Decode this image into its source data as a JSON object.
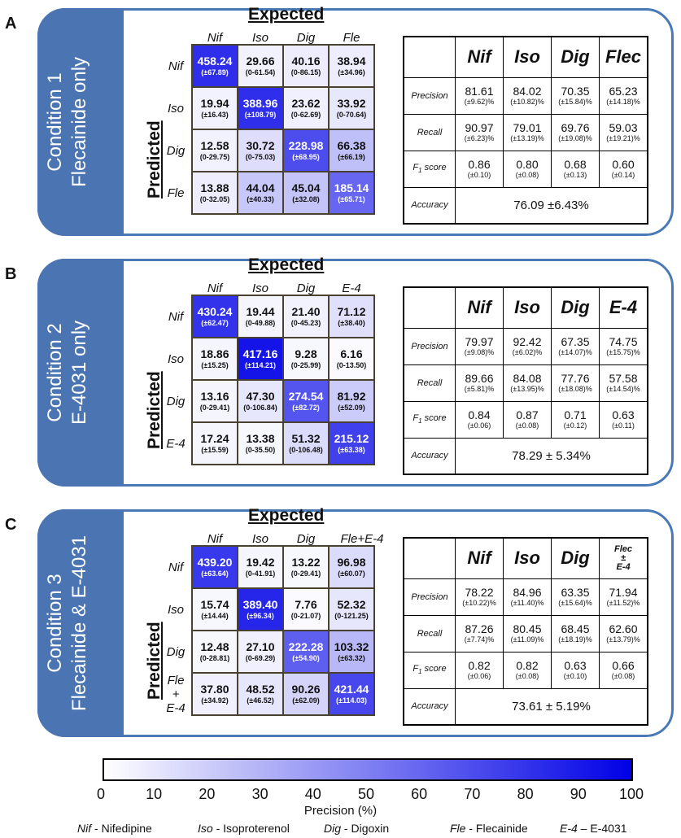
{
  "panels": [
    {
      "letter": "A",
      "condition_line1": "Condition 1",
      "condition_line2": "Flecainide only",
      "expected_label": "Expected",
      "predicted_label": "Predicted",
      "classes": [
        "Nif",
        "Iso",
        "Dig",
        "Fle"
      ],
      "matrix": [
        [
          {
            "v": "458.24",
            "s": "(±67.89)"
          },
          {
            "v": "29.66",
            "s": "(0-61.54)"
          },
          {
            "v": "40.16",
            "s": "(0-86.15)"
          },
          {
            "v": "38.94",
            "s": "(±34.96)"
          }
        ],
        [
          {
            "v": "19.94",
            "s": "(±16.43)"
          },
          {
            "v": "388.96",
            "s": "(±108.79)"
          },
          {
            "v": "23.62",
            "s": "(0-62.69)"
          },
          {
            "v": "33.92",
            "s": "(0-70.64)"
          }
        ],
        [
          {
            "v": "12.58",
            "s": "(0-29.75)"
          },
          {
            "v": "30.72",
            "s": "(0-75.03)"
          },
          {
            "v": "228.98",
            "s": "(±68.95)"
          },
          {
            "v": "66.38",
            "s": "(±66.19)"
          }
        ],
        [
          {
            "v": "13.88",
            "s": "(0-32.05)"
          },
          {
            "v": "44.04",
            "s": "(±40.33)"
          },
          {
            "v": "45.04",
            "s": "(±32.08)"
          },
          {
            "v": "185.14",
            "s": "(±65.71)"
          }
        ]
      ],
      "precision_shade": [
        [
          82,
          5,
          7,
          7
        ],
        [
          5,
          82,
          6,
          9
        ],
        [
          5,
          13,
          70,
          25
        ],
        [
          7,
          22,
          23,
          60
        ]
      ],
      "stats_headers": [
        "Nif",
        "Iso",
        "Dig",
        "Flec"
      ],
      "stats_header_small": [
        false,
        false,
        false,
        false
      ],
      "precision_label": "Precision",
      "precision": [
        [
          "81.61",
          "(±9.62)%"
        ],
        [
          "84.02",
          "(±10.82)%"
        ],
        [
          "70.35",
          "(±15.84)%"
        ],
        [
          "65.23",
          "(±14.18)%"
        ]
      ],
      "recall_label": "Recall",
      "recall": [
        [
          "90.97",
          "(±6.23)%"
        ],
        [
          "79.01",
          "(±13.19)%"
        ],
        [
          "69.76",
          "(±19.08)%"
        ],
        [
          "59.03",
          "(±19.21)%"
        ]
      ],
      "f1_label": "F",
      "f1_sub": "1",
      "f1_suffix": " score",
      "f1": [
        [
          "0.86",
          "(±0.10)"
        ],
        [
          "0.80",
          "(±0.08)"
        ],
        [
          "0.68",
          "(±0.13)"
        ],
        [
          "0.60",
          "(±0.14)"
        ]
      ],
      "accuracy_label": "Accuracy",
      "accuracy": "76.09 ±6.43%"
    },
    {
      "letter": "B",
      "condition_line1": "Condition 2",
      "condition_line2": "E-4031 only",
      "expected_label": "Expected",
      "predicted_label": "Predicted",
      "classes": [
        "Nif",
        "Iso",
        "Dig",
        "E-4"
      ],
      "matrix": [
        [
          {
            "v": "430.24",
            "s": "(±62.47)"
          },
          {
            "v": "19.44",
            "s": "(0-49.88)"
          },
          {
            "v": "21.40",
            "s": "(0-45.23)"
          },
          {
            "v": "71.12",
            "s": "(±38.40)"
          }
        ],
        [
          {
            "v": "18.86",
            "s": "(±15.25)"
          },
          {
            "v": "417.16",
            "s": "(±114.21)"
          },
          {
            "v": "9.28",
            "s": "(0-25.99)"
          },
          {
            "v": "6.16",
            "s": "(0-13.50)"
          }
        ],
        [
          {
            "v": "13.16",
            "s": "(0-29.41)"
          },
          {
            "v": "47.30",
            "s": "(0-106.84)"
          },
          {
            "v": "274.54",
            "s": "(±82.72)"
          },
          {
            "v": "81.92",
            "s": "(±52.09)"
          }
        ],
        [
          {
            "v": "17.24",
            "s": "(±15.59)"
          },
          {
            "v": "13.38",
            "s": "(0-35.50)"
          },
          {
            "v": "51.32",
            "s": "(0-106.48)"
          },
          {
            "v": "215.12",
            "s": "(±63.38)"
          }
        ]
      ],
      "precision_shade": [
        [
          80,
          4,
          5,
          12
        ],
        [
          4,
          92,
          3,
          2
        ],
        [
          4,
          10,
          67,
          20
        ],
        [
          4,
          3,
          14,
          75
        ]
      ],
      "stats_headers": [
        "Nif",
        "Iso",
        "Dig",
        "E-4"
      ],
      "stats_header_small": [
        false,
        false,
        false,
        false
      ],
      "precision_label": "Precision",
      "precision": [
        [
          "79.97",
          "(±9.08)%"
        ],
        [
          "92.42",
          "(±6.02)%"
        ],
        [
          "67.35",
          "(±14.07)%"
        ],
        [
          "74.75",
          "(±15.75)%"
        ]
      ],
      "recall_label": "Recall",
      "recall": [
        [
          "89.66",
          "(±5.81)%"
        ],
        [
          "84.08",
          "(±13.95)%"
        ],
        [
          "77.76",
          "(±18.08)%"
        ],
        [
          "57.58",
          "(±14.54)%"
        ]
      ],
      "f1_label": "F",
      "f1_sub": "1",
      "f1_suffix": " score",
      "f1": [
        [
          "0.84",
          "(±0.06)"
        ],
        [
          "0.87",
          "(±0.08)"
        ],
        [
          "0.71",
          "(±0.12)"
        ],
        [
          "0.63",
          "(±0.11)"
        ]
      ],
      "accuracy_label": "Accuracy",
      "accuracy": "78.29 ± 5.34%"
    },
    {
      "letter": "C",
      "condition_line1": "Condition 3",
      "condition_line2": "Flecainide & E-4031",
      "expected_label": "Expected",
      "predicted_label": "Predicted",
      "classes": [
        "Nif",
        "Iso",
        "Dig",
        "Fle+E-4"
      ],
      "row_classes": [
        "Nif",
        "Iso",
        "Dig",
        "Fle\n+\nE-4"
      ],
      "matrix": [
        [
          {
            "v": "439.20",
            "s": "(±63.64)"
          },
          {
            "v": "19.42",
            "s": "(0-41.91)"
          },
          {
            "v": "13.22",
            "s": "(0-29.41)"
          },
          {
            "v": "96.98",
            "s": "(±60.07)"
          }
        ],
        [
          {
            "v": "15.74",
            "s": "(±14.44)"
          },
          {
            "v": "389.40",
            "s": "(±96.34)"
          },
          {
            "v": "7.76",
            "s": "(0-21.07)"
          },
          {
            "v": "52.32",
            "s": "(0-121.25)"
          }
        ],
        [
          {
            "v": "12.48",
            "s": "(0-28.81)"
          },
          {
            "v": "27.10",
            "s": "(0-69.29)"
          },
          {
            "v": "222.28",
            "s": "(±54.90)"
          },
          {
            "v": "103.32",
            "s": "(±63.32)"
          }
        ],
        [
          {
            "v": "37.80",
            "s": "(±34.92)"
          },
          {
            "v": "48.52",
            "s": "(±46.52)"
          },
          {
            "v": "90.26",
            "s": "(±62.09)"
          },
          {
            "v": "421.44",
            "s": "(±114.03)"
          }
        ]
      ],
      "precision_shade": [
        [
          78,
          4,
          3,
          14
        ],
        [
          3,
          85,
          2,
          10
        ],
        [
          3,
          6,
          63,
          28
        ],
        [
          6,
          10,
          17,
          72
        ]
      ],
      "stats_headers": [
        "Nif",
        "Iso",
        "Dig",
        "Flec\n±\nE-4"
      ],
      "stats_header_small": [
        false,
        false,
        false,
        true
      ],
      "precision_label": "Precision",
      "precision": [
        [
          "78.22",
          "(±10.22)%"
        ],
        [
          "84.96",
          "(±11.40)%"
        ],
        [
          "63.35",
          "(±15.64)%"
        ],
        [
          "71.94",
          "(±11.52)%"
        ]
      ],
      "recall_label": "Recall",
      "recall": [
        [
          "87.26",
          "(±7.74)%"
        ],
        [
          "80.45",
          "(±11.09)%"
        ],
        [
          "68.45",
          "(±18.19)%"
        ],
        [
          "62.60",
          "(±13.79)%"
        ]
      ],
      "f1_label": "F",
      "f1_sub": "1",
      "f1_suffix": " score",
      "f1": [
        [
          "0.82",
          "(±0.06)"
        ],
        [
          "0.82",
          "(±0.08)"
        ],
        [
          "0.63",
          "(±0.10)"
        ],
        [
          "0.66",
          "(±0.08)"
        ]
      ],
      "accuracy_label": "Accuracy",
      "accuracy": "73.61 ± 5.19%"
    }
  ],
  "colorbar": {
    "ticks": [
      "0",
      "10",
      "20",
      "30",
      "40",
      "50",
      "60",
      "70",
      "80",
      "90",
      "100"
    ],
    "label": "Precision (%)",
    "color_min": "#ffffff",
    "color_max": "#0000e6"
  },
  "legend": [
    {
      "abbr": "Nif",
      "sep": " - ",
      "full": "Nifedipine"
    },
    {
      "abbr": "Iso",
      "sep": " - ",
      "full": "Isoproterenol"
    },
    {
      "abbr": "Dig",
      "sep": " - ",
      "full": "Digoxin"
    },
    {
      "abbr": "Fle",
      "sep": " - ",
      "full": "Flecainide"
    },
    {
      "abbr": "E-4",
      "sep": " – ",
      "full": "E-4031"
    }
  ]
}
